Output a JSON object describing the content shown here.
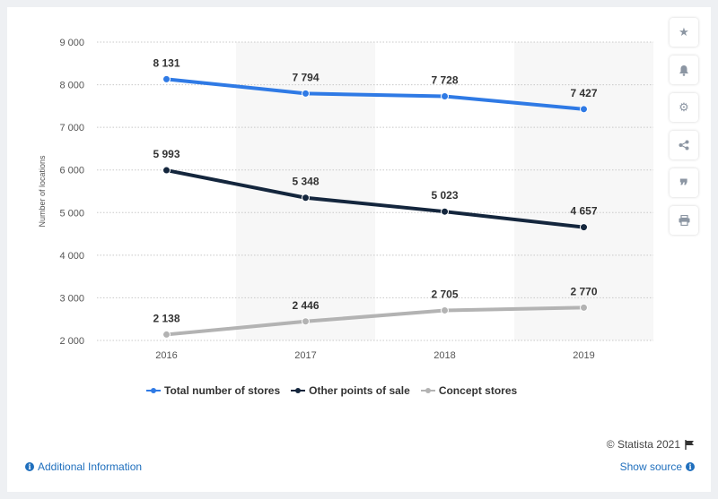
{
  "chart_data": {
    "type": "line",
    "categories": [
      "2016",
      "2017",
      "2018",
      "2019"
    ],
    "series": [
      {
        "name": "Total number of stores",
        "color": "#2f7ae5",
        "values": [
          8131,
          7794,
          7728,
          7427
        ],
        "labels": [
          "8 131",
          "7 794",
          "7 728",
          "7 427"
        ]
      },
      {
        "name": "Other points of sale",
        "color": "#14263d",
        "values": [
          5993,
          5348,
          5023,
          4657
        ],
        "labels": [
          "5 993",
          "5 348",
          "5 023",
          "4 657"
        ]
      },
      {
        "name": "Concept stores",
        "color": "#b3b3b3",
        "values": [
          2138,
          2446,
          2705,
          2770
        ],
        "labels": [
          "2 138",
          "2 446",
          "2 705",
          "2 770"
        ]
      }
    ],
    "ylabel": "Number of locations",
    "xlabel": "",
    "ylim": [
      2000,
      9000
    ],
    "yticks": [
      2000,
      3000,
      4000,
      5000,
      6000,
      7000,
      8000,
      9000
    ],
    "ytick_labels": [
      "2 000",
      "3 000",
      "4 000",
      "5 000",
      "6 000",
      "7 000",
      "8 000",
      "9 000"
    ],
    "grid": true,
    "legend_position": "bottom"
  },
  "toolbar": {
    "icons": [
      "star-icon",
      "bell-icon",
      "gear-icon",
      "share-icon",
      "quote-icon",
      "print-icon"
    ]
  },
  "footer": {
    "credit": "© Statista 2021",
    "additional_info": "Additional Information",
    "show_source": "Show source"
  }
}
